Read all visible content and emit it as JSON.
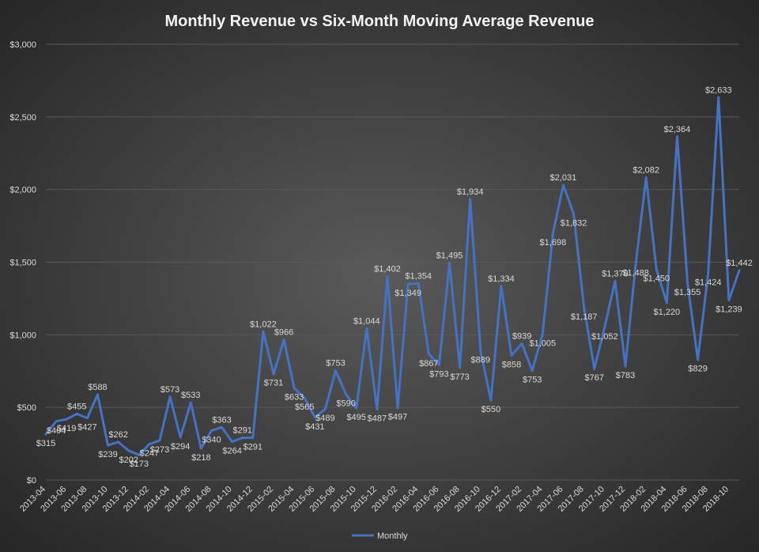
{
  "chart_data": {
    "type": "line",
    "title": "Monthly Revenue vs Six-Month Moving Average Revenue",
    "xlabel": "",
    "ylabel": "",
    "ylim": [
      0,
      3000
    ],
    "yticks": [
      0,
      500,
      1000,
      1500,
      2000,
      2500,
      3000
    ],
    "ytick_labels": [
      "$0",
      "$500",
      "$1,000",
      "$1,500",
      "$2,000",
      "$2,500",
      "$3,000"
    ],
    "x": [
      "2013-04",
      "2013-05",
      "2013-06",
      "2013-07",
      "2013-08",
      "2013-09",
      "2013-10",
      "2013-11",
      "2013-12",
      "2014-01",
      "2014-02",
      "2014-03",
      "2014-04",
      "2014-05",
      "2014-06",
      "2014-07",
      "2014-08",
      "2014-09",
      "2014-10",
      "2014-11",
      "2014-12",
      "2015-01",
      "2015-02",
      "2015-03",
      "2015-04",
      "2015-05",
      "2015-06",
      "2015-07",
      "2015-08",
      "2015-09",
      "2015-10",
      "2015-11",
      "2015-12",
      "2016-01",
      "2016-02",
      "2016-03",
      "2016-04",
      "2016-05",
      "2016-06",
      "2016-07",
      "2016-08",
      "2016-09",
      "2016-10",
      "2016-11",
      "2016-12",
      "2017-01",
      "2017-02",
      "2017-03",
      "2017-04",
      "2017-05",
      "2017-06",
      "2017-07",
      "2017-08",
      "2017-09",
      "2017-10",
      "2017-11",
      "2017-12",
      "2018-01",
      "2018-02",
      "2018-03",
      "2018-04",
      "2018-05",
      "2018-06",
      "2018-07",
      "2018-08",
      "2018-09",
      "2018-10",
      "2018-11"
    ],
    "xtick_labels": [
      "2013-04",
      "2013-06",
      "2013-08",
      "2013-10",
      "2013-12",
      "2014-02",
      "2014-04",
      "2014-06",
      "2014-08",
      "2014-10",
      "2014-12",
      "2015-02",
      "2015-04",
      "2015-06",
      "2015-08",
      "2015-10",
      "2015-12",
      "2016-02",
      "2016-04",
      "2016-06",
      "2016-08",
      "2016-10",
      "2016-12",
      "2017-02",
      "2017-04",
      "2017-06",
      "2017-08",
      "2017-10",
      "2017-12",
      "2018-02",
      "2018-04",
      "2018-06",
      "2018-08",
      "2018-10"
    ],
    "series": [
      {
        "name": "Monthly",
        "color": "#4472c4",
        "values": [
          315,
          404,
          419,
          455,
          427,
          588,
          239,
          262,
          202,
          173,
          247,
          273,
          573,
          294,
          533,
          218,
          340,
          363,
          264,
          291,
          291,
          1022,
          731,
          966,
          633,
          565,
          431,
          489,
          753,
          590,
          495,
          1044,
          487,
          1402,
          497,
          1349,
          1354,
          867,
          793,
          1495,
          773,
          1934,
          889,
          550,
          1334,
          858,
          939,
          753,
          1005,
          1698,
          2031,
          1832,
          1187,
          767,
          1052,
          1370,
          783,
          1488,
          2082,
          1450,
          1220,
          2364,
          1355,
          829,
          1424,
          2633,
          1239,
          1442
        ],
        "labels": [
          "$315",
          "$404",
          "$419",
          "$455",
          "$427",
          "$588",
          "$239",
          "$262",
          "$202",
          "$173",
          "$247",
          "$273",
          "$573",
          "$294",
          "$533",
          "$218",
          "$340",
          "$363",
          "$264",
          "$291",
          "$291",
          "$1,022",
          "$731",
          "$966",
          "$633",
          "$565",
          "$431",
          "$489",
          "$753",
          "$590",
          "$495",
          "$1,044",
          "$487",
          "$1,402",
          "$497",
          "$1,349",
          "$1,354",
          "$867",
          "$793",
          "$1,495",
          "$773",
          "$1,934",
          "$889",
          "$550",
          "$1,334",
          "$858",
          "$939",
          "$753",
          "$1,005",
          "$1,698",
          "$2,031",
          "$1,832",
          "$1,187",
          "$767",
          "$1,052",
          "$1,370",
          "$783",
          "$1,488",
          "$2,082",
          "$1,450",
          "$1,220",
          "$2,364",
          "$1,355",
          "$829",
          "$1,424",
          "$2,633",
          "$1,239",
          "$1,442"
        ]
      }
    ],
    "grid": true,
    "legend": "bottom",
    "gridline_color": "#595959"
  }
}
